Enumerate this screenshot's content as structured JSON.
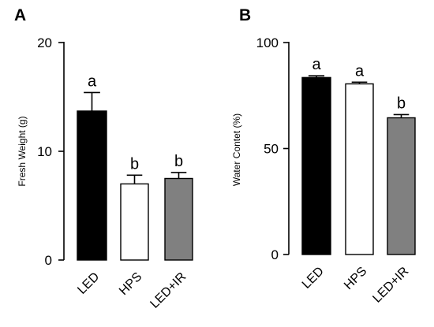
{
  "chart_data": [
    {
      "panel_label": "A",
      "type": "bar",
      "categories": [
        "LED",
        "HPS",
        "LED+IR"
      ],
      "values": [
        13.7,
        7.0,
        7.5
      ],
      "errors": [
        1.7,
        0.8,
        0.55
      ],
      "significance": [
        "a",
        "b",
        "b"
      ],
      "fill_colors": [
        "#000000",
        "#ffffff",
        "#808080"
      ],
      "title": "",
      "xlabel": "",
      "ylabel": "Fresh Weight (g)",
      "ylim": [
        0,
        20
      ],
      "yticks": [
        0,
        10,
        20
      ],
      "grid": false,
      "legend": "none"
    },
    {
      "panel_label": "B",
      "type": "bar",
      "categories": [
        "LED",
        "HPS",
        "LED+IR"
      ],
      "values": [
        83.5,
        80.5,
        64.5
      ],
      "errors": [
        0.8,
        0.8,
        1.5
      ],
      "significance": [
        "a",
        "a",
        "b"
      ],
      "fill_colors": [
        "#000000",
        "#ffffff",
        "#808080"
      ],
      "title": "",
      "xlabel": "",
      "ylabel": "Water Contet (%)",
      "ylim": [
        0,
        100
      ],
      "yticks": [
        0,
        50,
        100
      ],
      "grid": false,
      "legend": "none"
    }
  ]
}
